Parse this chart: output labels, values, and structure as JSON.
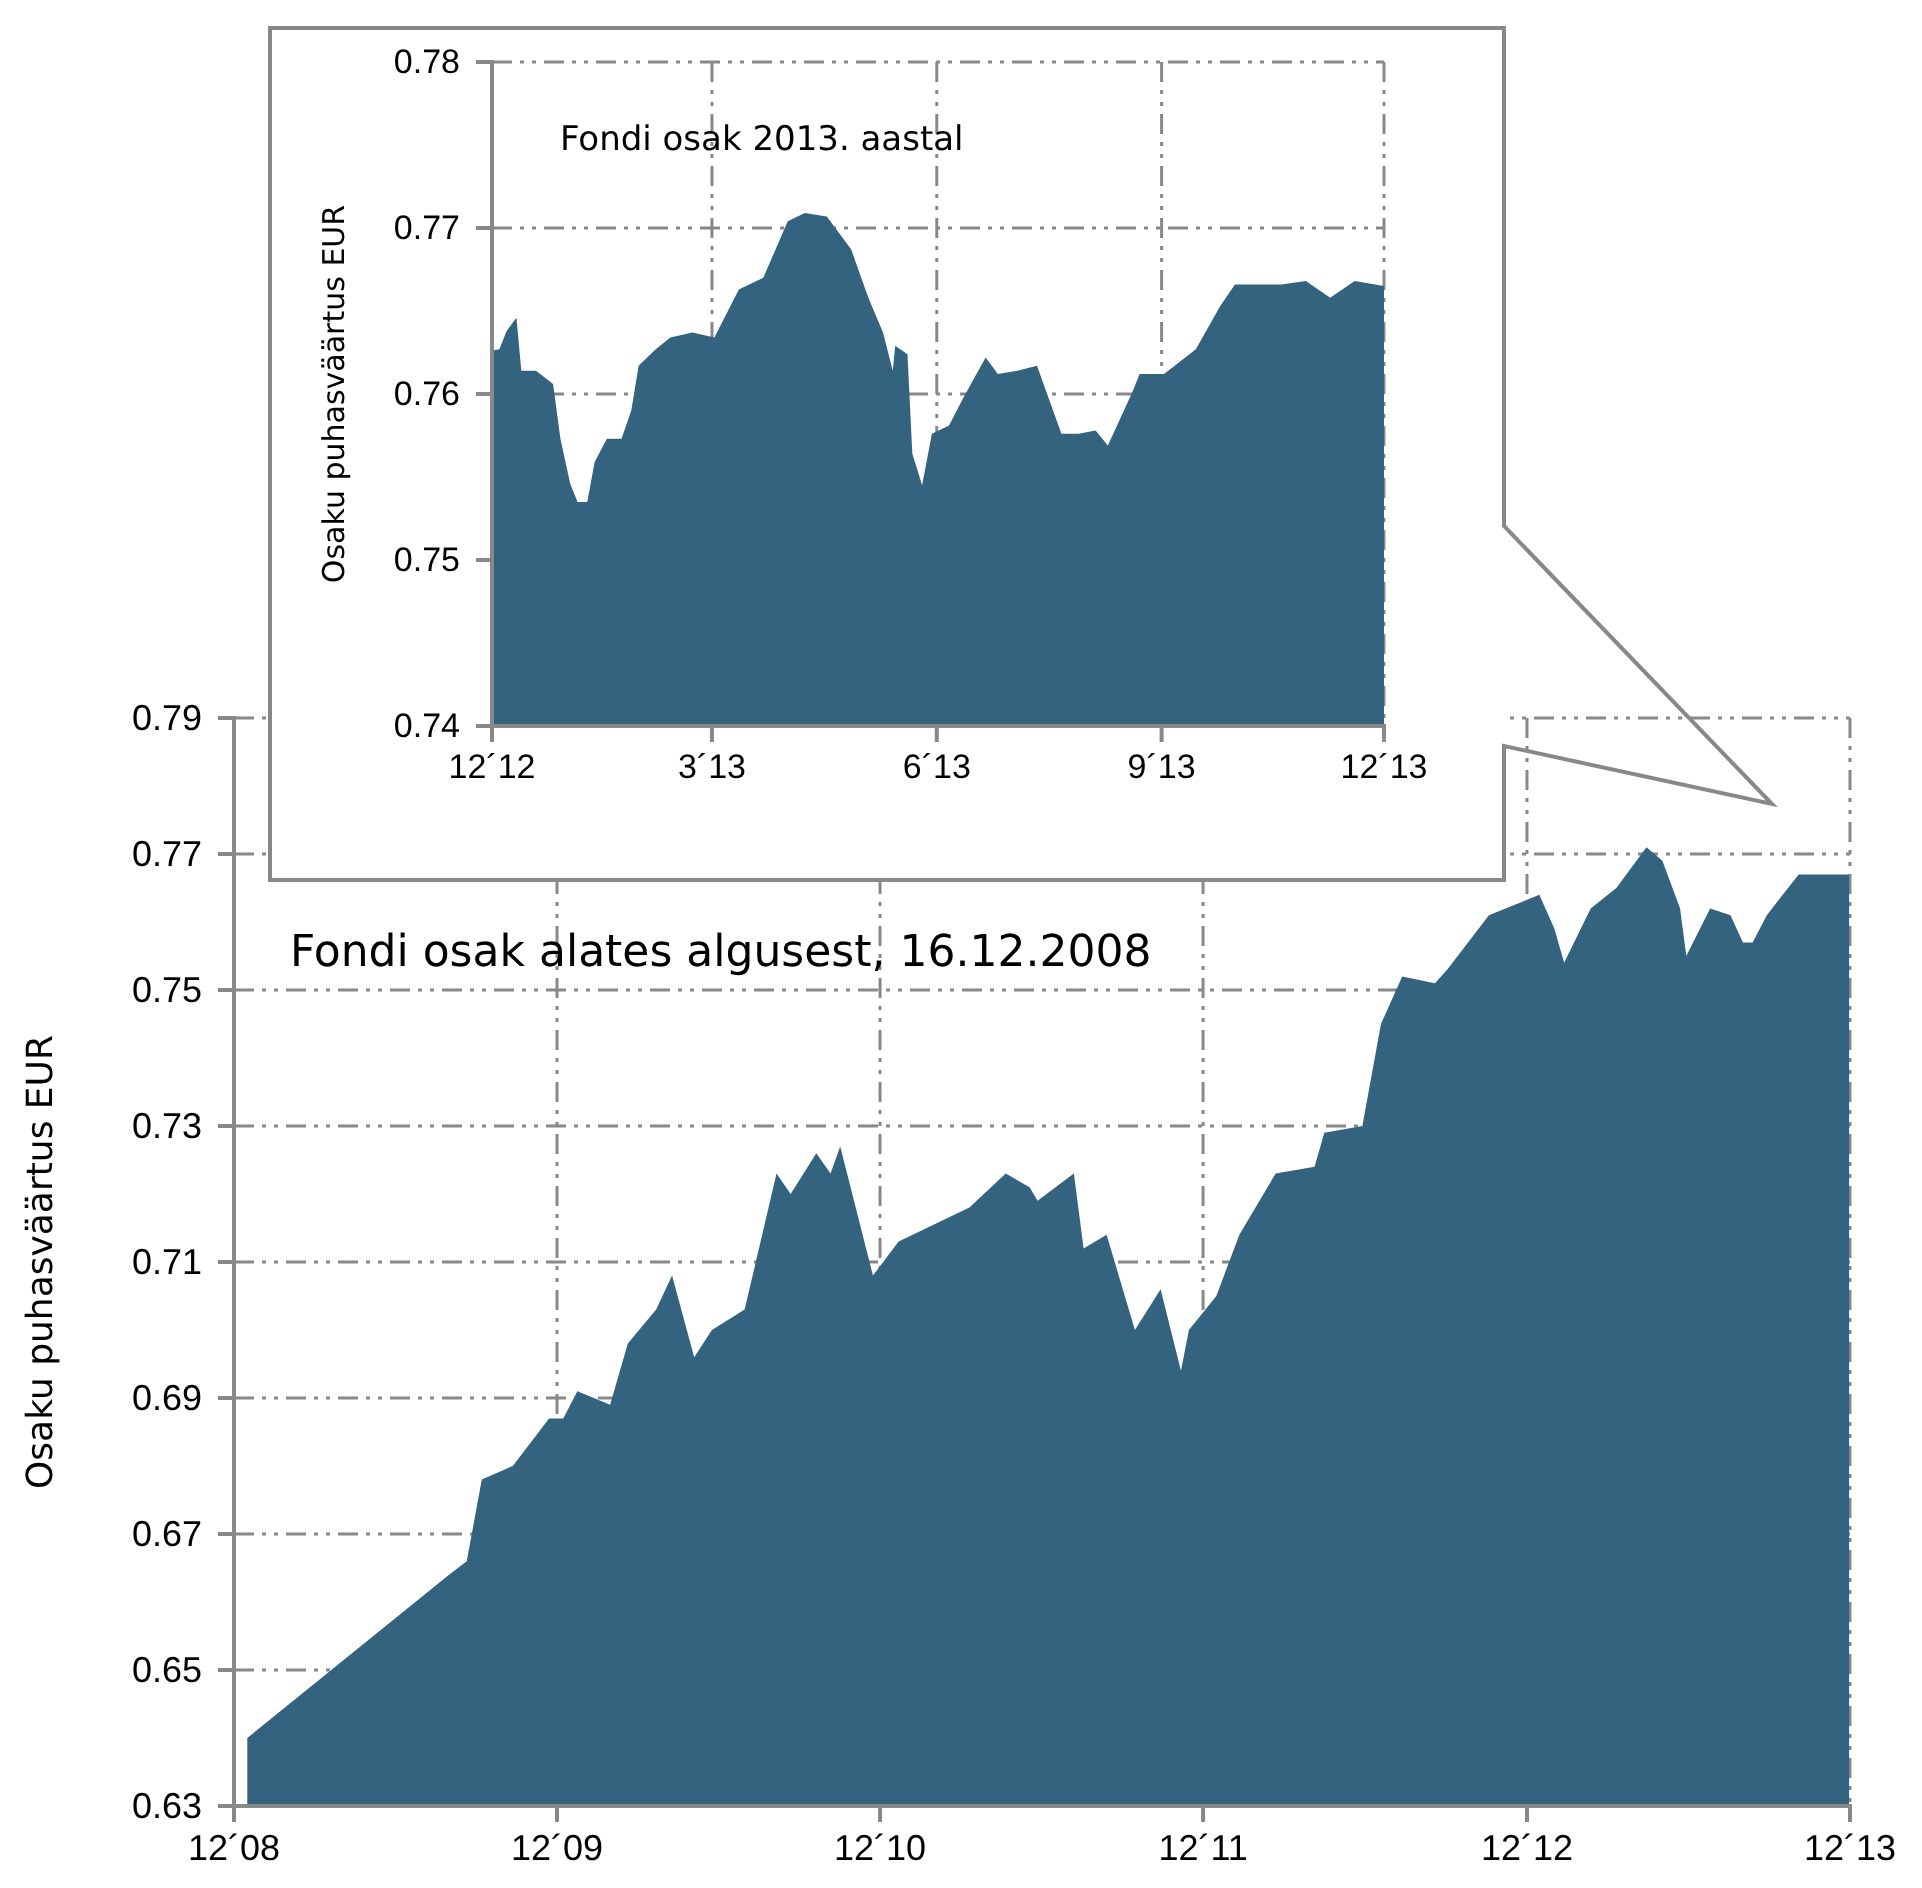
{
  "chart_data": [
    {
      "type": "area",
      "title": "Fondi osak 2013. aastal",
      "ylabel": "Osaku puhasväärtus EUR",
      "grid": true,
      "xlim": [
        "2012-12-01",
        "2013-12-01"
      ],
      "xticks": [
        {
          "value": "2012-12-01",
          "label": "12´12"
        },
        {
          "value": "2013-03-01",
          "label": "3´13"
        },
        {
          "value": "2013-06-01",
          "label": "6´13"
        },
        {
          "value": "2013-09-01",
          "label": "9´13"
        },
        {
          "value": "2013-12-01",
          "label": "12´13"
        }
      ],
      "ylim": [
        0.74,
        0.78
      ],
      "yticks": [
        0.74,
        0.75,
        0.76,
        0.77,
        0.78
      ],
      "x": [
        "2012-12-01",
        "2012-12-04",
        "2012-12-07",
        "2012-12-11",
        "2012-12-13",
        "2012-12-19",
        "2012-12-26",
        "2012-12-29",
        "2013-01-02",
        "2013-01-05",
        "2013-01-09",
        "2013-01-12",
        "2013-01-17",
        "2013-01-23",
        "2013-01-27",
        "2013-01-30",
        "2013-02-06",
        "2013-02-12",
        "2013-02-21",
        "2013-03-02",
        "2013-03-12",
        "2013-03-22",
        "2013-04-01",
        "2013-04-08",
        "2013-04-17",
        "2013-04-27",
        "2013-05-04",
        "2013-05-10",
        "2013-05-14",
        "2013-05-15",
        "2013-05-20",
        "2013-05-22",
        "2013-05-26",
        "2013-05-30",
        "2013-06-06",
        "2013-06-12",
        "2013-06-21",
        "2013-06-26",
        "2013-07-04",
        "2013-07-12",
        "2013-07-22",
        "2013-07-29",
        "2013-08-05",
        "2013-08-10",
        "2013-08-20",
        "2013-08-23",
        "2013-09-02",
        "2013-09-15",
        "2013-09-25",
        "2013-10-01",
        "2013-10-10",
        "2013-10-20",
        "2013-10-30",
        "2013-11-09",
        "2013-11-19",
        "2013-12-01"
      ],
      "series": [
        {
          "color": "#34637f",
          "values": [
            0.7626,
            0.7627,
            0.7638,
            0.7646,
            0.7614,
            0.7614,
            0.7606,
            0.7573,
            0.7546,
            0.7535,
            0.7535,
            0.7559,
            0.7573,
            0.7573,
            0.759,
            0.7617,
            0.7627,
            0.7634,
            0.7637,
            0.7634,
            0.7663,
            0.767,
            0.7704,
            0.7709,
            0.7707,
            0.7687,
            0.7658,
            0.7637,
            0.7614,
            0.7629,
            0.7624,
            0.7564,
            0.7545,
            0.7576,
            0.7581,
            0.7598,
            0.7622,
            0.7612,
            0.7614,
            0.7617,
            0.7576,
            0.7576,
            0.7578,
            0.7569,
            0.7601,
            0.7612,
            0.7612,
            0.7627,
            0.7653,
            0.7666,
            0.7666,
            0.7666,
            0.7668,
            0.7658,
            0.7668,
            0.7665
          ]
        }
      ]
    },
    {
      "type": "area",
      "title": "Fondi osak alates algusest, 16.12.2008",
      "ylabel": "Osaku puhasväärtus  EUR",
      "grid": true,
      "xlim": [
        "2008-12-01",
        "2013-12-01"
      ],
      "xticks": [
        {
          "value": "2008-12-01",
          "label": "12´08"
        },
        {
          "value": "2009-12-01",
          "label": "12´09"
        },
        {
          "value": "2010-12-01",
          "label": "12´10"
        },
        {
          "value": "2011-12-01",
          "label": "12´11"
        },
        {
          "value": "2012-12-01",
          "label": "12´12"
        },
        {
          "value": "2013-12-01",
          "label": "12´13"
        }
      ],
      "ylim": [
        0.63,
        0.79
      ],
      "yticks": [
        0.63,
        0.65,
        0.67,
        0.69,
        0.71,
        0.73,
        0.75,
        0.77,
        0.79
      ],
      "x": [
        "2008-12-16",
        "2009-08-01",
        "2009-08-21",
        "2009-09-07",
        "2009-10-12",
        "2009-11-22",
        "2009-12-08",
        "2009-12-24",
        "2010-01-30",
        "2010-02-19",
        "2010-03-23",
        "2010-04-10",
        "2010-05-05",
        "2010-05-25",
        "2010-07-01",
        "2010-08-06",
        "2010-08-22",
        "2010-09-20",
        "2010-10-06",
        "2010-10-17",
        "2010-11-23",
        "2010-12-22",
        "2011-03-12",
        "2011-04-22",
        "2011-05-19",
        "2011-05-28",
        "2011-07-08",
        "2011-07-19",
        "2011-08-14",
        "2011-09-15",
        "2011-10-14",
        "2011-11-06",
        "2011-11-15",
        "2011-12-16",
        "2012-01-11",
        "2012-02-21",
        "2012-04-05",
        "2012-04-16",
        "2012-05-29",
        "2012-06-19",
        "2012-07-13",
        "2012-08-19",
        "2012-09-02",
        "2012-10-19",
        "2012-12-15",
        "2013-01-01",
        "2013-01-12",
        "2013-02-11",
        "2013-03-12",
        "2013-04-15",
        "2013-05-03",
        "2013-05-23",
        "2013-05-30",
        "2013-06-26",
        "2013-07-19",
        "2013-08-02",
        "2013-08-13",
        "2013-08-29",
        "2013-10-04",
        "2013-11-30"
      ],
      "series": [
        {
          "color": "#34637f",
          "values": [
            0.64,
            0.664,
            0.666,
            0.678,
            0.68,
            0.687,
            0.687,
            0.691,
            0.689,
            0.698,
            0.703,
            0.708,
            0.696,
            0.7,
            0.703,
            0.723,
            0.72,
            0.726,
            0.723,
            0.727,
            0.708,
            0.713,
            0.718,
            0.723,
            0.721,
            0.719,
            0.723,
            0.712,
            0.714,
            0.7,
            0.706,
            0.694,
            0.7,
            0.705,
            0.714,
            0.723,
            0.724,
            0.729,
            0.73,
            0.745,
            0.752,
            0.751,
            0.753,
            0.761,
            0.764,
            0.759,
            0.754,
            0.762,
            0.765,
            0.771,
            0.769,
            0.762,
            0.755,
            0.762,
            0.761,
            0.757,
            0.757,
            0.761,
            0.767,
            0.767
          ]
        }
      ]
    }
  ]
}
